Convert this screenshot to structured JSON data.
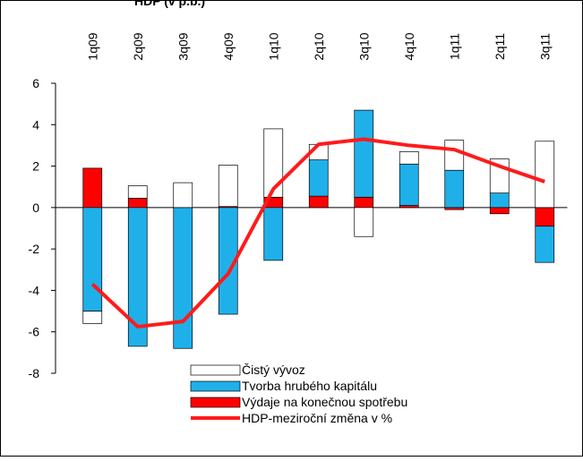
{
  "chart_data": {
    "type": "bar",
    "title": "HDP (v p.b.)",
    "categories": [
      "1q09",
      "2q09",
      "3q09",
      "4q09",
      "1q10",
      "2q10",
      "3q10",
      "4q10",
      "1q11",
      "2q11",
      "3q11"
    ],
    "series": [
      {
        "name": "Čistý vývoz",
        "type": "bar",
        "color": "#ffffff",
        "values": [
          -0.6,
          0.6,
          1.2,
          2.0,
          3.3,
          0.75,
          -1.4,
          0.6,
          1.45,
          1.65,
          3.2
        ]
      },
      {
        "name": "Tvorba hrubého kapitálu",
        "type": "bar",
        "color": "#1fb0ea",
        "values": [
          -5.0,
          -6.7,
          -6.8,
          -5.15,
          -2.55,
          1.75,
          4.2,
          2.0,
          1.8,
          0.7,
          -1.75
        ]
      },
      {
        "name": "Výdaje na konečnou spotřebu",
        "type": "bar",
        "color": "#ff0000",
        "values": [
          1.9,
          0.45,
          0,
          0.05,
          0.5,
          0.55,
          0.5,
          0.1,
          -0.1,
          -0.3,
          -0.9
        ]
      },
      {
        "name": "HDP-meziroční změna v %",
        "type": "line",
        "color": "#ff1a1a",
        "values": [
          -3.7,
          -5.75,
          -5.5,
          -3.2,
          0.9,
          3.05,
          3.3,
          3.0,
          2.8,
          2.0,
          1.25
        ]
      }
    ],
    "ylim": [
      -8,
      6
    ],
    "yticks": [
      -8,
      -6,
      -4,
      -2,
      0,
      2,
      4,
      6
    ]
  }
}
